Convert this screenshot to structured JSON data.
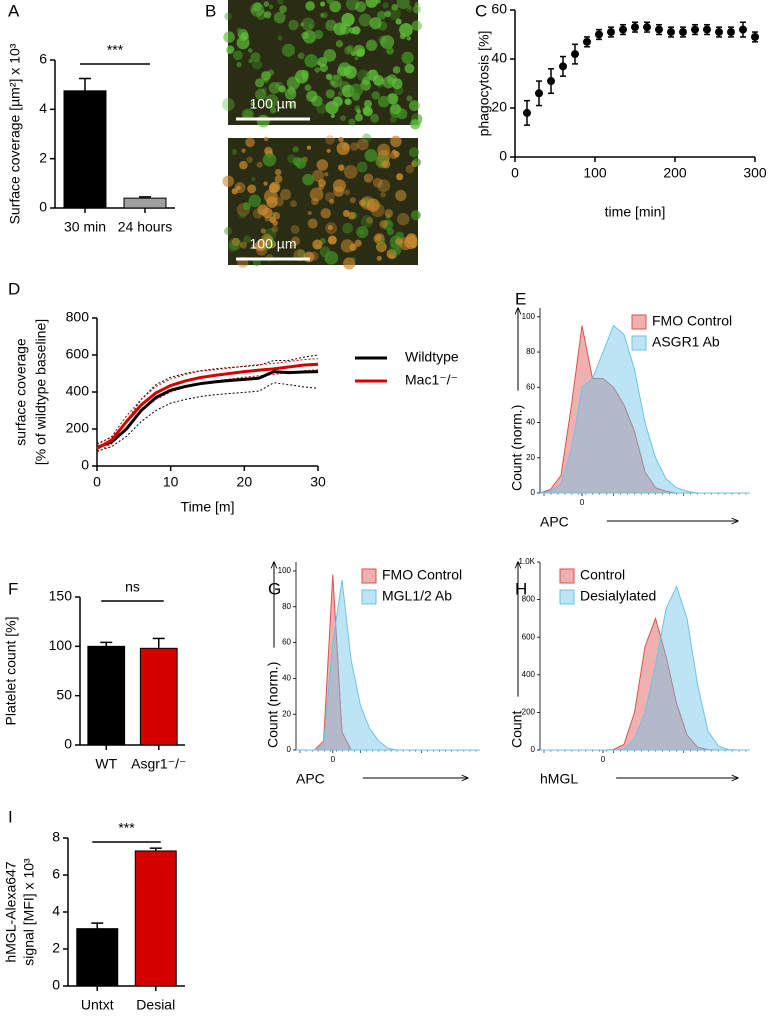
{
  "chart_data": [
    {
      "type": "bar",
      "panel": "A",
      "ylabel": [
        "Surface coverage [µm²] x 10³"
      ],
      "categories": [
        "30 min",
        "24 hours"
      ],
      "values": [
        4.75,
        0.4
      ],
      "errors": [
        0.5,
        0.05
      ],
      "colors": [
        "#000000",
        "#a0a0a0"
      ],
      "ylim": [
        0,
        6
      ],
      "yticks": [
        0,
        2,
        4,
        6
      ],
      "significance": "***"
    },
    {
      "type": "image",
      "panel": "B",
      "images": [
        {
          "scale_bar": "100 µm",
          "color": "#5fbf3a"
        },
        {
          "scale_bar": "100 µm",
          "color": "#c8882e"
        }
      ]
    },
    {
      "type": "errorscatter",
      "panel": "C",
      "xlabel": "time [min]",
      "ylabel": [
        "phagocytosis [%]"
      ],
      "x": [
        15,
        30,
        45,
        60,
        75,
        90,
        105,
        120,
        135,
        150,
        165,
        180,
        195,
        210,
        225,
        240,
        255,
        270,
        285,
        300
      ],
      "values": [
        18,
        26,
        31,
        37,
        42,
        47,
        50,
        51,
        52,
        53,
        53,
        52,
        51,
        51,
        52,
        52,
        51,
        51,
        52,
        49
      ],
      "errors": [
        5,
        5,
        5,
        4,
        4,
        2,
        2,
        2,
        2,
        2,
        2,
        2,
        2,
        2,
        2,
        2,
        2,
        2,
        3,
        2
      ],
      "color": "#000000",
      "xlim": [
        0,
        300
      ],
      "xticks": [
        0,
        100,
        200,
        300
      ],
      "ylim": [
        0,
        60
      ],
      "yticks": [
        0,
        20,
        40,
        60
      ]
    },
    {
      "type": "line",
      "panel": "D",
      "xlabel": "Time [m]",
      "ylabel": [
        "surface coverage",
        "[% of wildtype baseline]"
      ],
      "x": [
        0,
        2,
        4,
        6,
        8,
        10,
        12,
        14,
        16,
        18,
        20,
        22,
        24,
        26,
        28,
        30
      ],
      "series": [
        {
          "name": "Wildtype",
          "color": "#000000",
          "values": [
            100,
            130,
            200,
            300,
            370,
            410,
            430,
            445,
            455,
            462,
            468,
            475,
            510,
            505,
            508,
            510
          ],
          "sd": [
            20,
            25,
            40,
            60,
            70,
            70,
            70,
            70,
            70,
            70,
            70,
            70,
            60,
            65,
            80,
            90
          ]
        },
        {
          "name": "Mac1⁻/⁻",
          "color": "#d40000",
          "values": [
            95,
            140,
            240,
            330,
            395,
            435,
            460,
            478,
            490,
            500,
            510,
            518,
            525,
            535,
            545,
            550
          ],
          "sd": [
            20,
            20,
            30,
            30,
            35,
            35,
            35,
            35,
            30,
            30,
            30,
            30,
            30,
            30,
            30,
            30
          ]
        }
      ],
      "xlim": [
        0,
        30
      ],
      "xticks": [
        0,
        10,
        20,
        30
      ],
      "ylim": [
        0,
        800
      ],
      "yticks": [
        0,
        200,
        400,
        600,
        800
      ],
      "legend": "right"
    },
    {
      "type": "area",
      "panel": "E",
      "xlabel": "APC",
      "ylabel": [
        "Count (norm.)"
      ],
      "x": [
        -20,
        -15,
        -10,
        -5,
        0,
        5,
        10,
        15,
        20,
        25,
        30,
        35,
        40,
        45,
        50,
        55,
        60,
        65,
        70,
        75,
        80
      ],
      "series": [
        {
          "name": "FMO Control",
          "color": "#d9534f",
          "values": [
            0,
            2,
            10,
            50,
            95,
            65,
            65,
            60,
            50,
            35,
            12,
            3,
            1,
            0,
            0,
            0,
            0,
            0,
            0,
            0,
            0
          ]
        },
        {
          "name": "ASGR1 Ab",
          "color": "#6cc3e8",
          "values": [
            0,
            1,
            5,
            25,
            60,
            65,
            80,
            95,
            90,
            70,
            40,
            20,
            8,
            3,
            1,
            0,
            0,
            0,
            0,
            0,
            0
          ]
        }
      ],
      "xlim": [
        -20,
        80
      ],
      "xticks": [
        0
      ],
      "ylim": [
        0,
        105
      ],
      "yticks": [
        0,
        20,
        40,
        60,
        80,
        100
      ],
      "legend": "upper right"
    },
    {
      "type": "bar",
      "panel": "F",
      "ylabel": [
        "Platelet count [%]"
      ],
      "categories": [
        "WT",
        "Asgr1⁻/⁻"
      ],
      "values": [
        100,
        98
      ],
      "errors": [
        4,
        10
      ],
      "colors": [
        "#000000",
        "#d40000"
      ],
      "ylim": [
        0,
        150
      ],
      "yticks": [
        0,
        50,
        100,
        150
      ],
      "significance": "ns"
    },
    {
      "type": "area",
      "panel": "G",
      "xlabel": "APC",
      "ylabel": [
        "Count (norm.)"
      ],
      "x": [
        -20,
        -15,
        -10,
        -5,
        0,
        5,
        10,
        15,
        20,
        25,
        30,
        35,
        40,
        45,
        50,
        55,
        60,
        65,
        70,
        75,
        80
      ],
      "series": [
        {
          "name": "FMO Control",
          "color": "#d9534f",
          "values": [
            0,
            0,
            0,
            5,
            98,
            10,
            0,
            0,
            0,
            0,
            0,
            0,
            0,
            0,
            0,
            0,
            0,
            0,
            0,
            0,
            0
          ]
        },
        {
          "name": "MGL1/2 Ab",
          "color": "#6cc3e8",
          "values": [
            0,
            0,
            0,
            3,
            60,
            95,
            50,
            25,
            12,
            5,
            1,
            0,
            0,
            0,
            0,
            0,
            0,
            0,
            0,
            0,
            0
          ]
        }
      ],
      "xlim": [
        -20,
        80
      ],
      "xticks": [
        0
      ],
      "ylim": [
        0,
        105
      ],
      "yticks": [
        0,
        20,
        40,
        60,
        80,
        100
      ],
      "legend": "upper right"
    },
    {
      "type": "area",
      "panel": "H",
      "xlabel": "hMGL",
      "ylabel": [
        "Count"
      ],
      "x": [
        -30,
        -25,
        -20,
        -15,
        -10,
        -5,
        0,
        5,
        10,
        15,
        20,
        25,
        30,
        35,
        40,
        45,
        50,
        55,
        60,
        65,
        70
      ],
      "series": [
        {
          "name": "Control",
          "color": "#d9534f",
          "values": [
            0,
            0,
            0,
            0,
            0,
            0,
            0,
            2,
            30,
            200,
            550,
            700,
            500,
            250,
            80,
            15,
            2,
            0,
            0,
            0,
            0
          ]
        },
        {
          "name": "Desialylated",
          "color": "#6cc3e8",
          "values": [
            0,
            0,
            0,
            0,
            0,
            0,
            0,
            0,
            5,
            60,
            200,
            450,
            750,
            870,
            700,
            350,
            100,
            20,
            2,
            0,
            0
          ]
        }
      ],
      "xlim": [
        -30,
        70
      ],
      "xticks": [
        0
      ],
      "ylim": [
        0,
        1000
      ],
      "yticks": [
        0,
        200,
        400,
        600,
        800,
        {
          "value": 1000,
          "label": "1.0K"
        }
      ],
      "legend": "upper left"
    },
    {
      "type": "bar",
      "panel": "I",
      "ylabel": [
        "hMGL-Alexa647",
        "signal [MFI] x 10³"
      ],
      "categories": [
        "Untxt",
        "Desial"
      ],
      "values": [
        3.1,
        7.3
      ],
      "errors": [
        0.3,
        0.15
      ],
      "colors": [
        "#000000",
        "#d40000"
      ],
      "ylim": [
        0,
        8
      ],
      "yticks": [
        0,
        2,
        4,
        6,
        8
      ],
      "significance": "***"
    }
  ]
}
